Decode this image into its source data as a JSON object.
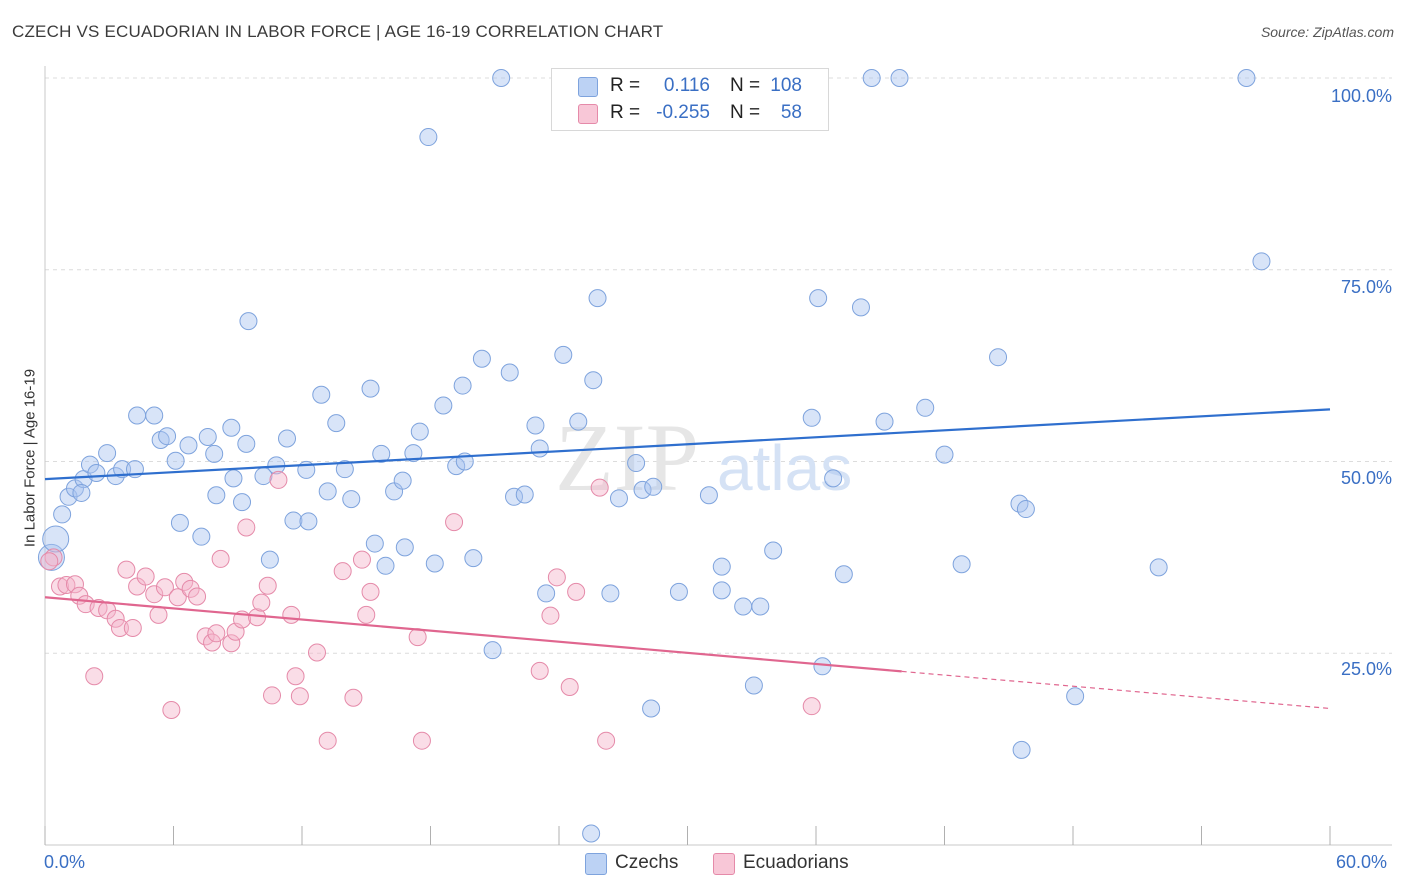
{
  "title": "CZECH VS ECUADORIAN IN LABOR FORCE | AGE 16-19 CORRELATION CHART",
  "source": "Source: ZipAtlas.com",
  "watermark": {
    "zip": "ZIP",
    "atlas": "atlas"
  },
  "legend_top": {
    "rows": [
      {
        "r_label": "R =",
        "r_value": "0.116",
        "n_label": "N =",
        "n_value": "108",
        "color": "#a9c4ef"
      },
      {
        "r_label": "R =",
        "r_value": "-0.255",
        "n_label": "N =",
        "n_value": "58",
        "color": "#f4b4c9"
      }
    ]
  },
  "legend_bottom": [
    {
      "label": "Czechs",
      "color": "#a9c4ef"
    },
    {
      "label": "Ecuadorians",
      "color": "#f4b4c9"
    }
  ],
  "x_tick_left": "0.0%",
  "x_tick_right": "60.0%",
  "y_ticks": [
    "100.0%",
    "75.0%",
    "50.0%",
    "25.0%"
  ],
  "chart_data": {
    "type": "scatter",
    "title": "CZECH VS ECUADORIAN IN LABOR FORCE | AGE 16-19 CORRELATION CHART",
    "xlabel": "",
    "ylabel": "In Labor Force | Age 16-19",
    "xlim": [
      0,
      60
    ],
    "ylim": [
      0,
      100
    ],
    "y_gridlines": [
      25,
      50,
      75,
      100
    ],
    "grid": true,
    "legend": "bottom-center",
    "series": [
      {
        "name": "Czechs",
        "color": "#a9c4ef",
        "stroke": "#7ea3dd",
        "trend": {
          "x": [
            0,
            60
          ],
          "y": [
            47.7,
            56.8
          ],
          "color": "#2f6fce",
          "dashed_from": null
        },
        "points": [
          [
            0.3,
            37.5
          ],
          [
            0.5,
            39.9
          ],
          [
            0.8,
            43.1
          ],
          [
            1.1,
            45.4
          ],
          [
            1.4,
            46.5
          ],
          [
            1.8,
            47.7
          ],
          [
            2.1,
            49.6
          ],
          [
            2.4,
            48.5
          ],
          [
            1.7,
            45.9
          ],
          [
            2.9,
            51.1
          ],
          [
            3.3,
            48.1
          ],
          [
            3.6,
            49.0
          ],
          [
            4.2,
            49.0
          ],
          [
            4.3,
            56.0
          ],
          [
            5.1,
            56.0
          ],
          [
            5.4,
            52.8
          ],
          [
            5.7,
            53.3
          ],
          [
            6.1,
            50.1
          ],
          [
            6.7,
            52.1
          ],
          [
            7.3,
            40.2
          ],
          [
            6.3,
            42.0
          ],
          [
            7.6,
            53.2
          ],
          [
            7.9,
            51.0
          ],
          [
            8.0,
            45.6
          ],
          [
            8.7,
            54.4
          ],
          [
            8.8,
            47.8
          ],
          [
            9.2,
            44.7
          ],
          [
            9.4,
            52.3
          ],
          [
            9.5,
            68.3
          ],
          [
            10.2,
            48.1
          ],
          [
            10.5,
            37.2
          ],
          [
            10.8,
            49.5
          ],
          [
            11.3,
            53.0
          ],
          [
            11.6,
            42.3
          ],
          [
            12.3,
            42.2
          ],
          [
            12.2,
            48.9
          ],
          [
            12.9,
            58.7
          ],
          [
            13.2,
            46.1
          ],
          [
            13.6,
            55.0
          ],
          [
            14.0,
            49.0
          ],
          [
            14.3,
            45.1
          ],
          [
            15.2,
            59.5
          ],
          [
            15.4,
            39.3
          ],
          [
            15.7,
            51.0
          ],
          [
            15.9,
            36.4
          ],
          [
            16.3,
            46.1
          ],
          [
            16.7,
            47.5
          ],
          [
            16.8,
            38.8
          ],
          [
            17.2,
            51.1
          ],
          [
            17.5,
            53.9
          ],
          [
            17.9,
            92.3
          ],
          [
            18.2,
            36.7
          ],
          [
            18.6,
            57.3
          ],
          [
            19.2,
            49.4
          ],
          [
            19.5,
            59.9
          ],
          [
            19.6,
            50.0
          ],
          [
            20.0,
            37.4
          ],
          [
            20.4,
            63.4
          ],
          [
            20.9,
            25.4
          ],
          [
            21.3,
            100.0
          ],
          [
            21.7,
            61.6
          ],
          [
            21.9,
            45.4
          ],
          [
            22.4,
            45.7
          ],
          [
            22.9,
            54.7
          ],
          [
            23.1,
            51.7
          ],
          [
            23.4,
            32.8
          ],
          [
            24.2,
            63.9
          ],
          [
            24.9,
            55.2
          ],
          [
            25.6,
            60.6
          ],
          [
            25.8,
            71.3
          ],
          [
            26.4,
            32.8
          ],
          [
            26.8,
            45.2
          ],
          [
            27.6,
            49.8
          ],
          [
            27.9,
            46.3
          ],
          [
            28.4,
            46.7
          ],
          [
            29.6,
            33.0
          ],
          [
            31.0,
            45.6
          ],
          [
            31.6,
            33.2
          ],
          [
            31.6,
            36.3
          ],
          [
            32.0,
            100.0
          ],
          [
            32.6,
            31.1
          ],
          [
            33.1,
            20.8
          ],
          [
            33.4,
            31.1
          ],
          [
            34.0,
            38.4
          ],
          [
            34.6,
            94.8
          ],
          [
            35.8,
            55.7
          ],
          [
            36.1,
            71.3
          ],
          [
            36.3,
            23.3
          ],
          [
            36.8,
            47.8
          ],
          [
            37.3,
            35.3
          ],
          [
            38.1,
            70.1
          ],
          [
            38.6,
            100.0
          ],
          [
            39.2,
            55.2
          ],
          [
            39.9,
            100.0
          ],
          [
            41.1,
            57.0
          ],
          [
            42.0,
            50.9
          ],
          [
            42.8,
            36.6
          ],
          [
            44.5,
            63.6
          ],
          [
            45.5,
            44.5
          ],
          [
            45.8,
            43.8
          ],
          [
            45.6,
            12.4
          ],
          [
            48.1,
            19.4
          ],
          [
            52.0,
            36.2
          ],
          [
            56.1,
            100.0
          ],
          [
            56.8,
            76.1
          ],
          [
            25.5,
            1.5
          ],
          [
            28.3,
            17.8
          ]
        ]
      },
      {
        "name": "Ecuadorians",
        "color": "#f4b4c9",
        "stroke": "#e58aa9",
        "trend": {
          "x": [
            0,
            60
          ],
          "y": [
            32.3,
            17.8
          ],
          "color": "#e0668f",
          "dashed_from": 40
        },
        "points": [
          [
            0.4,
            37.5
          ],
          [
            0.7,
            33.7
          ],
          [
            1.0,
            33.9
          ],
          [
            1.4,
            34.0
          ],
          [
            1.6,
            32.5
          ],
          [
            1.9,
            31.4
          ],
          [
            2.3,
            22.0
          ],
          [
            2.5,
            30.9
          ],
          [
            2.9,
            30.6
          ],
          [
            3.3,
            29.5
          ],
          [
            3.5,
            28.3
          ],
          [
            3.8,
            35.9
          ],
          [
            4.1,
            28.3
          ],
          [
            4.3,
            33.7
          ],
          [
            4.7,
            35.0
          ],
          [
            5.1,
            32.7
          ],
          [
            5.3,
            30.0
          ],
          [
            5.6,
            33.6
          ],
          [
            5.9,
            17.6
          ],
          [
            6.2,
            32.3
          ],
          [
            6.5,
            34.3
          ],
          [
            6.8,
            33.4
          ],
          [
            7.1,
            32.4
          ],
          [
            7.5,
            27.2
          ],
          [
            7.8,
            26.4
          ],
          [
            8.0,
            27.6
          ],
          [
            8.2,
            37.3
          ],
          [
            8.7,
            26.3
          ],
          [
            8.9,
            27.8
          ],
          [
            9.2,
            29.4
          ],
          [
            9.4,
            41.4
          ],
          [
            9.9,
            29.7
          ],
          [
            10.1,
            31.6
          ],
          [
            10.4,
            33.8
          ],
          [
            10.6,
            19.5
          ],
          [
            10.9,
            47.6
          ],
          [
            11.5,
            30.0
          ],
          [
            11.7,
            22.0
          ],
          [
            11.9,
            19.4
          ],
          [
            12.7,
            25.1
          ],
          [
            13.2,
            13.6
          ],
          [
            13.9,
            35.7
          ],
          [
            14.4,
            19.2
          ],
          [
            14.8,
            37.2
          ],
          [
            15.0,
            30.0
          ],
          [
            15.2,
            33.0
          ],
          [
            17.4,
            27.1
          ],
          [
            17.6,
            13.6
          ],
          [
            19.1,
            42.1
          ],
          [
            23.1,
            22.7
          ],
          [
            23.6,
            29.9
          ],
          [
            23.9,
            34.9
          ],
          [
            24.5,
            20.6
          ],
          [
            24.8,
            33.0
          ],
          [
            25.9,
            46.6
          ],
          [
            26.2,
            13.6
          ],
          [
            35.8,
            18.1
          ],
          [
            0.2,
            37.0
          ]
        ]
      }
    ]
  }
}
